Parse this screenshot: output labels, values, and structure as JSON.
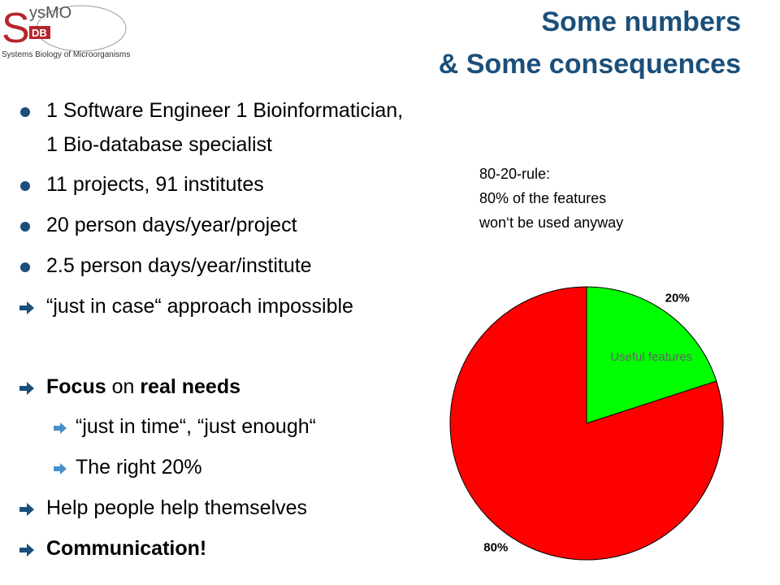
{
  "logo": {
    "initial": "S",
    "name": "ysMO",
    "badge": "DB",
    "tagline": "Systems Biology of Microorganisms"
  },
  "title": [
    "Some numbers",
    "& Some consequences"
  ],
  "bullets": [
    [
      "1 Software Engineer  1 Bioinformatician,",
      "1 Bio-database specialist"
    ],
    [
      "11 projects, 91 institutes"
    ],
    [
      "20 person days/year/project"
    ],
    [
      "2.5 person days/year/institute"
    ],
    [
      "“just in case“ approach impossible"
    ],
    [
      "Focus",
      " on ",
      "real needs"
    ],
    [
      "“just in time“, “just enough“"
    ],
    [
      "The right 20%"
    ],
    [
      "Help people help themselves"
    ],
    [
      "Communication!"
    ]
  ],
  "note": [
    "80-20-rule:",
    "80% of the features",
    "won‘t be used anyway"
  ],
  "chart_data": {
    "type": "pie",
    "categories": [
      "Useful features",
      null
    ],
    "values": [
      20,
      80
    ],
    "value_labels": [
      "20%",
      "80%"
    ],
    "colors": [
      "#00ff00",
      "#ff0000"
    ]
  }
}
